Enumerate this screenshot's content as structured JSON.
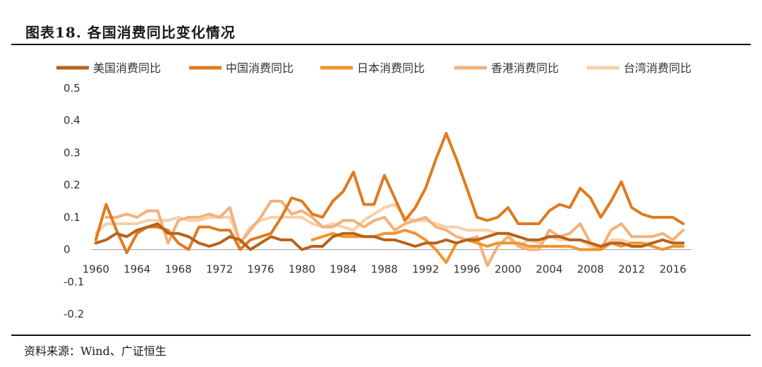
{
  "header": {
    "title": "图表18.  各国消费同比变化情况"
  },
  "footer": {
    "source": "资料来源：Wind、广证恒生"
  },
  "chart_data": {
    "type": "line",
    "title": "",
    "xlabel": "",
    "ylabel": "",
    "ylim": [
      -0.2,
      0.5
    ],
    "yticks": [
      "0.5",
      "0.4",
      "0.3",
      "0.2",
      "0.1",
      "0",
      "-0.1",
      "-0.2"
    ],
    "ytick_values": [
      0.5,
      0.4,
      0.3,
      0.2,
      0.1,
      0,
      -0.1,
      -0.2
    ],
    "xticks": [
      "1960",
      "1964",
      "1968",
      "1972",
      "1976",
      "1980",
      "1984",
      "1988",
      "1992",
      "1996",
      "2000",
      "2004",
      "2008",
      "2012",
      "2016"
    ],
    "xtick_values": [
      1960,
      1964,
      1968,
      1972,
      1976,
      1980,
      1984,
      1988,
      1992,
      1996,
      2000,
      2004,
      2008,
      2012,
      2016
    ],
    "grid": false,
    "legend_position": "top",
    "series": [
      {
        "name": "美国消费同比",
        "color": "#b8621b",
        "x": [
          1960,
          1961,
          1962,
          1963,
          1964,
          1965,
          1966,
          1967,
          1968,
          1969,
          1970,
          1971,
          1972,
          1973,
          1974,
          1975,
          1976,
          1977,
          1978,
          1979,
          1980,
          1981,
          1982,
          1983,
          1984,
          1985,
          1986,
          1987,
          1988,
          1989,
          1990,
          1991,
          1992,
          1993,
          1994,
          1995,
          1996,
          1997,
          1998,
          1999,
          2000,
          2001,
          2002,
          2003,
          2004,
          2005,
          2006,
          2007,
          2008,
          2009,
          2010,
          2011,
          2012,
          2013,
          2014,
          2015,
          2016,
          2017
        ],
        "y": [
          0.02,
          0.03,
          0.05,
          0.04,
          0.06,
          0.07,
          0.08,
          0.05,
          0.05,
          0.04,
          0.02,
          0.01,
          0.02,
          0.04,
          0.03,
          0.0,
          0.02,
          0.04,
          0.03,
          0.03,
          0.0,
          0.01,
          0.01,
          0.04,
          0.05,
          0.05,
          0.04,
          0.04,
          0.03,
          0.03,
          0.02,
          0.01,
          0.02,
          0.02,
          0.03,
          0.02,
          0.03,
          0.03,
          0.04,
          0.05,
          0.05,
          0.04,
          0.03,
          0.03,
          0.04,
          0.04,
          0.03,
          0.03,
          0.02,
          0.01,
          0.02,
          0.02,
          0.01,
          0.01,
          0.02,
          0.03,
          0.02,
          0.02
        ]
      },
      {
        "name": "中国消费同比",
        "color": "#e07a1e",
        "x": [
          1960,
          1961,
          1962,
          1963,
          1964,
          1965,
          1966,
          1967,
          1968,
          1969,
          1970,
          1971,
          1972,
          1973,
          1974,
          1975,
          1976,
          1977,
          1978,
          1979,
          1980,
          1981,
          1982,
          1983,
          1984,
          1985,
          1986,
          1987,
          1988,
          1989,
          1990,
          1991,
          1992,
          1993,
          1994,
          1995,
          1996,
          1997,
          1998,
          1999,
          2000,
          2001,
          2002,
          2003,
          2004,
          2005,
          2006,
          2007,
          2008,
          2009,
          2010,
          2011,
          2012,
          2013,
          2014,
          2015,
          2016,
          2017
        ],
        "y": [
          0.03,
          0.14,
          0.06,
          -0.01,
          0.05,
          0.07,
          0.07,
          0.06,
          0.02,
          0.0,
          0.07,
          0.07,
          0.06,
          0.06,
          0.0,
          0.03,
          0.04,
          0.05,
          0.1,
          0.16,
          0.15,
          0.11,
          0.1,
          0.15,
          0.18,
          0.24,
          0.14,
          0.14,
          0.23,
          0.16,
          0.09,
          0.13,
          0.19,
          0.28,
          0.36,
          0.28,
          0.19,
          0.1,
          0.09,
          0.1,
          0.13,
          0.08,
          0.08,
          0.08,
          0.12,
          0.14,
          0.13,
          0.19,
          0.16,
          0.1,
          0.15,
          0.21,
          0.13,
          0.11,
          0.1,
          0.1,
          0.1,
          0.08
        ]
      },
      {
        "name": "日本消费同比",
        "color": "#f0952a",
        "x": [
          1981,
          1982,
          1983,
          1984,
          1985,
          1986,
          1987,
          1988,
          1989,
          1990,
          1991,
          1992,
          1993,
          1994,
          1995,
          1996,
          1997,
          1998,
          1999,
          2000,
          2001,
          2002,
          2003,
          2004,
          2005,
          2006,
          2007,
          2008,
          2009,
          2010,
          2011,
          2012,
          2013,
          2014,
          2015,
          2016,
          2017
        ],
        "y": [
          0.03,
          0.04,
          0.05,
          0.04,
          0.04,
          0.04,
          0.04,
          0.05,
          0.05,
          0.06,
          0.05,
          0.03,
          0.0,
          -0.04,
          0.02,
          0.03,
          0.02,
          0.01,
          0.02,
          0.02,
          0.02,
          0.01,
          0.01,
          0.01,
          0.01,
          0.01,
          0.0,
          0.0,
          0.0,
          0.02,
          0.01,
          0.02,
          0.02,
          0.01,
          0.0,
          0.01,
          0.01
        ]
      },
      {
        "name": "香港消费同比",
        "color": "#f4b07a",
        "x": [
          1961,
          1962,
          1963,
          1964,
          1965,
          1966,
          1967,
          1968,
          1969,
          1970,
          1971,
          1972,
          1973,
          1974,
          1975,
          1976,
          1977,
          1978,
          1979,
          1980,
          1981,
          1982,
          1983,
          1984,
          1985,
          1986,
          1987,
          1988,
          1989,
          1990,
          1991,
          1992,
          1993,
          1994,
          1995,
          1996,
          1997,
          1998,
          1999,
          2000,
          2001,
          2002,
          2003,
          2004,
          2005,
          2006,
          2007,
          2008,
          2009,
          2010,
          2011,
          2012,
          2013,
          2014,
          2015,
          2016,
          2017
        ],
        "y": [
          0.1,
          0.1,
          0.11,
          0.1,
          0.12,
          0.12,
          0.02,
          0.09,
          0.1,
          0.1,
          0.11,
          0.1,
          0.13,
          0.02,
          0.06,
          0.1,
          0.15,
          0.15,
          0.11,
          0.12,
          0.1,
          0.07,
          0.07,
          0.09,
          0.09,
          0.07,
          0.09,
          0.1,
          0.06,
          0.08,
          0.09,
          0.1,
          0.07,
          0.06,
          0.04,
          0.03,
          0.04,
          -0.05,
          0.01,
          0.04,
          0.01,
          0.0,
          0.0,
          0.06,
          0.04,
          0.05,
          0.08,
          0.02,
          0.0,
          0.06,
          0.08,
          0.04,
          0.04,
          0.04,
          0.05,
          0.03,
          0.06
        ]
      },
      {
        "name": "台湾消费同比",
        "color": "#f8cfa8",
        "x": [
          1960,
          1961,
          1962,
          1963,
          1964,
          1965,
          1966,
          1967,
          1968,
          1969,
          1970,
          1971,
          1972,
          1973,
          1974,
          1975,
          1976,
          1977,
          1978,
          1979,
          1980,
          1981,
          1982,
          1983,
          1984,
          1985,
          1986,
          1987,
          1988,
          1989,
          1990,
          1991,
          1992,
          1993,
          1994,
          1995,
          1996,
          1997,
          1998,
          1999,
          2000,
          2001,
          2002,
          2003,
          2004,
          2005,
          2006,
          2007,
          2008,
          2009,
          2010,
          2011,
          2012,
          2013,
          2014,
          2015,
          2016,
          2017
        ],
        "y": [
          0.05,
          0.08,
          0.08,
          0.08,
          0.08,
          0.09,
          0.09,
          0.09,
          0.1,
          0.09,
          0.09,
          0.1,
          0.1,
          0.1,
          0.02,
          0.07,
          0.09,
          0.1,
          0.1,
          0.1,
          0.1,
          0.08,
          0.07,
          0.08,
          0.07,
          0.06,
          0.09,
          0.11,
          0.13,
          0.14,
          0.1,
          0.09,
          0.09,
          0.08,
          0.07,
          0.07,
          0.06,
          0.06,
          0.06,
          0.05,
          0.05,
          0.01,
          0.03,
          0.02,
          0.04,
          0.03,
          0.03,
          0.03,
          0.01,
          0.0,
          0.03,
          0.03,
          0.02,
          0.02,
          0.02,
          0.03,
          0.02,
          0.02
        ]
      }
    ]
  }
}
